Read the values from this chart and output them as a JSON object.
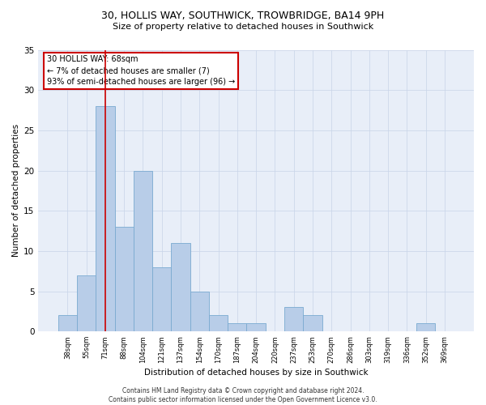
{
  "title1": "30, HOLLIS WAY, SOUTHWICK, TROWBRIDGE, BA14 9PH",
  "title2": "Size of property relative to detached houses in Southwick",
  "xlabel": "Distribution of detached houses by size in Southwick",
  "ylabel": "Number of detached properties",
  "categories": [
    "38sqm",
    "55sqm",
    "71sqm",
    "88sqm",
    "104sqm",
    "121sqm",
    "137sqm",
    "154sqm",
    "170sqm",
    "187sqm",
    "204sqm",
    "220sqm",
    "237sqm",
    "253sqm",
    "270sqm",
    "286sqm",
    "303sqm",
    "319sqm",
    "336sqm",
    "352sqm",
    "369sqm"
  ],
  "values": [
    2,
    7,
    28,
    13,
    20,
    8,
    11,
    5,
    2,
    1,
    1,
    0,
    3,
    2,
    0,
    0,
    0,
    0,
    0,
    1,
    0
  ],
  "bar_color": "#B8CDE8",
  "bar_edge_color": "#7AAAD0",
  "vline_x_index": 2,
  "vline_color": "#CC0000",
  "annotation_text": "30 HOLLIS WAY: 68sqm\n← 7% of detached houses are smaller (7)\n93% of semi-detached houses are larger (96) →",
  "annotation_box_color": "#FFFFFF",
  "annotation_box_edge": "#CC0000",
  "background_color": "#E8EEF8",
  "ylim": [
    0,
    35
  ],
  "yticks": [
    0,
    5,
    10,
    15,
    20,
    25,
    30,
    35
  ],
  "footer": "Contains HM Land Registry data © Crown copyright and database right 2024.\nContains public sector information licensed under the Open Government Licence v3.0."
}
